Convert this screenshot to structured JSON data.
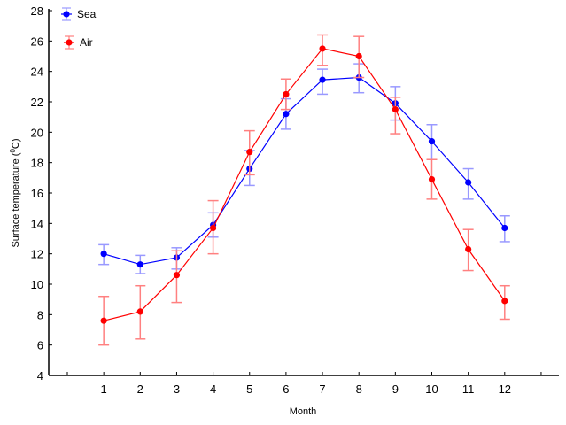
{
  "chart_data": {
    "type": "line",
    "title": "",
    "xlabel": "Month",
    "ylabel": "Surface temperature (",
    "ylabel_sup": "0",
    "ylabel_tail": "C)",
    "xlim": [
      0,
      13
    ],
    "ylim": [
      4,
      28
    ],
    "grid": false,
    "legend_position": "top-left",
    "x": [
      1,
      2,
      3,
      4,
      5,
      6,
      7,
      8,
      9,
      10,
      11,
      12
    ],
    "x_ticks": [
      0,
      1,
      2,
      3,
      4,
      5,
      6,
      7,
      8,
      9,
      10,
      11,
      12,
      13
    ],
    "x_tick_labels": [
      "",
      "1",
      "2",
      "3",
      "4",
      "5",
      "6",
      "7",
      "8",
      "9",
      "10",
      "11",
      "12",
      ""
    ],
    "y_ticks": [
      4,
      6,
      8,
      10,
      12,
      14,
      16,
      18,
      20,
      22,
      24,
      26,
      28
    ],
    "y_tick_labels": [
      "4",
      "6",
      "8",
      "10",
      "12",
      "14",
      "16",
      "18",
      "20",
      "22",
      "24",
      "26",
      "28"
    ],
    "series": [
      {
        "name": "Sea",
        "color": "#0000ff",
        "error_color": "#9999ff",
        "values": [
          12.0,
          11.3,
          11.75,
          13.9,
          17.6,
          21.2,
          23.45,
          23.6,
          21.9,
          19.4,
          16.7,
          13.7
        ],
        "error_upper": [
          12.6,
          11.9,
          12.4,
          14.7,
          18.8,
          22.2,
          24.15,
          24.5,
          23.0,
          20.5,
          17.6,
          14.5
        ],
        "error_lower": [
          11.3,
          10.7,
          11.0,
          13.1,
          16.5,
          20.2,
          22.5,
          22.6,
          20.8,
          18.2,
          15.6,
          12.8
        ]
      },
      {
        "name": "Air",
        "color": "#ff0000",
        "error_color": "#ff8080",
        "values": [
          7.6,
          8.2,
          10.6,
          13.7,
          18.7,
          22.5,
          25.5,
          25.0,
          21.5,
          16.9,
          12.3,
          8.9
        ],
        "error_upper": [
          9.2,
          9.9,
          12.2,
          15.5,
          20.1,
          23.5,
          26.4,
          26.3,
          22.3,
          18.2,
          13.6,
          9.9
        ],
        "error_lower": [
          6.0,
          6.4,
          8.8,
          12.0,
          17.2,
          21.5,
          24.4,
          23.6,
          19.9,
          15.6,
          10.9,
          7.7
        ]
      }
    ]
  }
}
